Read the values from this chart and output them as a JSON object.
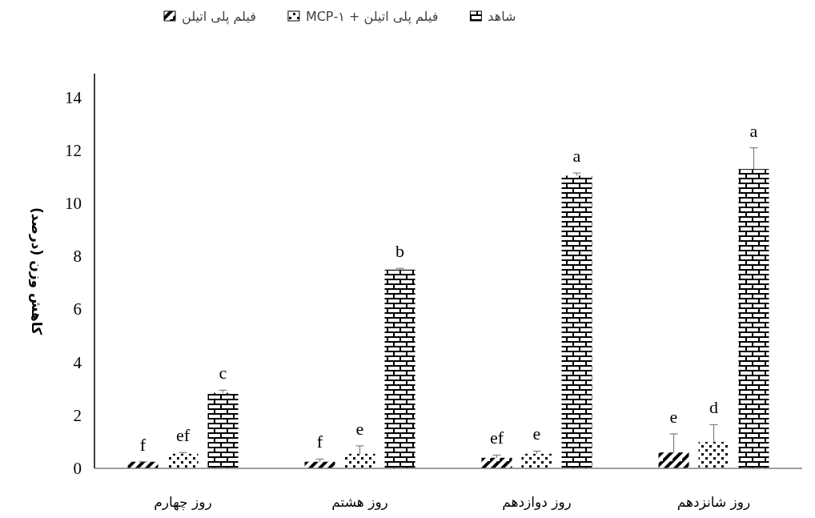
{
  "chart_data": {
    "type": "bar",
    "categories": [
      "روز چهارم",
      "روز هشتم",
      "روز دوازدهم",
      "روز شانزدهم"
    ],
    "ylabel": "کاهش وزن (درصد)",
    "ylim": [
      0,
      14.9
    ],
    "yticks": [
      0,
      2,
      4,
      6,
      8,
      10,
      12,
      14
    ],
    "grid": false,
    "legend": "top",
    "series": [
      {
        "name": "فیلم پلی اتیلن",
        "color": "#000000",
        "values": [
          0.25,
          0.25,
          0.4,
          0.6
        ],
        "errors": [
          [
            0.25,
            0.25
          ],
          [
            0.25,
            0.35
          ],
          [
            0.4,
            0.5
          ],
          [
            0.6,
            1.3
          ]
        ]
      },
      {
        "name": "فیلم پلی اتیلن + ۱-MCP",
        "color": "#000000",
        "values": [
          0.55,
          0.55,
          0.55,
          1.0
        ],
        "errors": [
          [
            0.55,
            0.6
          ],
          [
            0.55,
            0.85
          ],
          [
            0.55,
            0.65
          ],
          [
            1.0,
            1.65
          ]
        ]
      },
      {
        "name": "شاهد",
        "color": "#000000",
        "values": [
          2.85,
          7.5,
          11.05,
          11.3
        ],
        "errors": [
          [
            2.85,
            2.95
          ],
          [
            7.5,
            7.55
          ],
          [
            11.05,
            11.15
          ],
          [
            11.3,
            12.1
          ]
        ]
      }
    ],
    "annotations": [
      "f",
      "ef",
      "c",
      "f",
      "e",
      "b",
      "ef",
      "e",
      "a",
      "e",
      "d",
      "a"
    ]
  }
}
